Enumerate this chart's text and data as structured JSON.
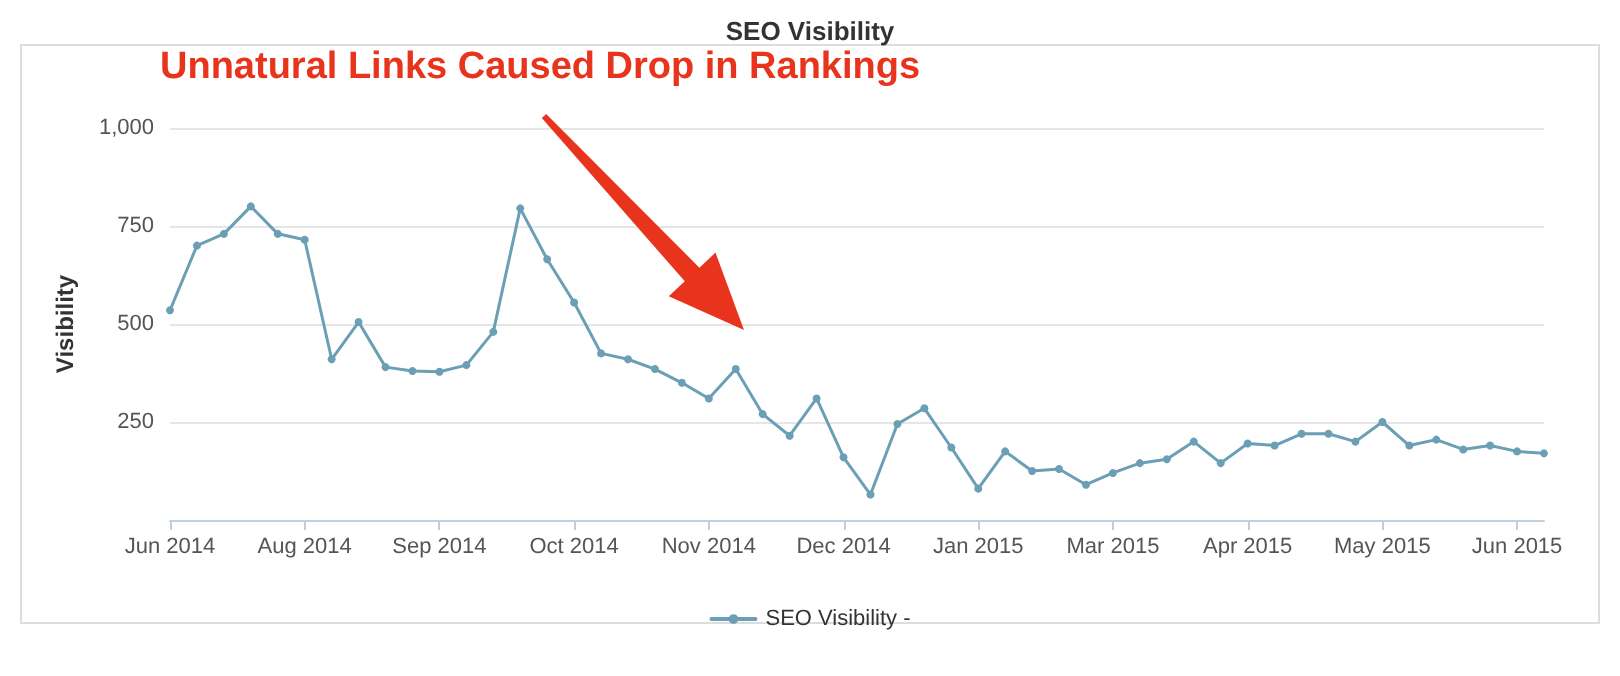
{
  "chart_data": {
    "type": "line",
    "title": "SEO Visibility",
    "ylabel": "Visibility",
    "annotations": [
      "Unnatural Links Caused Drop in Rankings"
    ],
    "categories": [
      "Jun 2014",
      null,
      null,
      null,
      null,
      "Aug 2014",
      null,
      null,
      null,
      null,
      "Sep 2014",
      null,
      null,
      null,
      null,
      "Oct 2014",
      null,
      null,
      null,
      null,
      "Nov 2014",
      null,
      null,
      null,
      null,
      "Dec 2014",
      null,
      null,
      null,
      null,
      "Jan 2015",
      null,
      null,
      null,
      null,
      "Mar 2015",
      null,
      null,
      null,
      null,
      "Apr 2015",
      null,
      null,
      null,
      null,
      "May 2015",
      null,
      null,
      null,
      null,
      "Jun 2015",
      null
    ],
    "series": [
      {
        "name": "SEO Visibility -",
        "color": "#6a9fb5",
        "values": [
          535,
          700,
          730,
          800,
          730,
          715,
          410,
          505,
          390,
          380,
          378,
          395,
          480,
          795,
          665,
          555,
          425,
          410,
          385,
          350,
          310,
          385,
          270,
          215,
          310,
          160,
          65,
          245,
          285,
          185,
          80,
          175,
          125,
          130,
          90,
          120,
          145,
          155,
          200,
          145,
          195,
          190,
          220,
          220,
          200,
          250,
          190,
          205,
          180,
          190,
          175,
          170
        ]
      }
    ],
    "ylim": [
      0,
      1000
    ],
    "yticks": [
      250,
      500,
      750,
      {
        "value": 1000,
        "label": "1,000"
      }
    ],
    "grid": "y",
    "legend": "bottom",
    "marker": "circle",
    "line_style": "solid"
  }
}
